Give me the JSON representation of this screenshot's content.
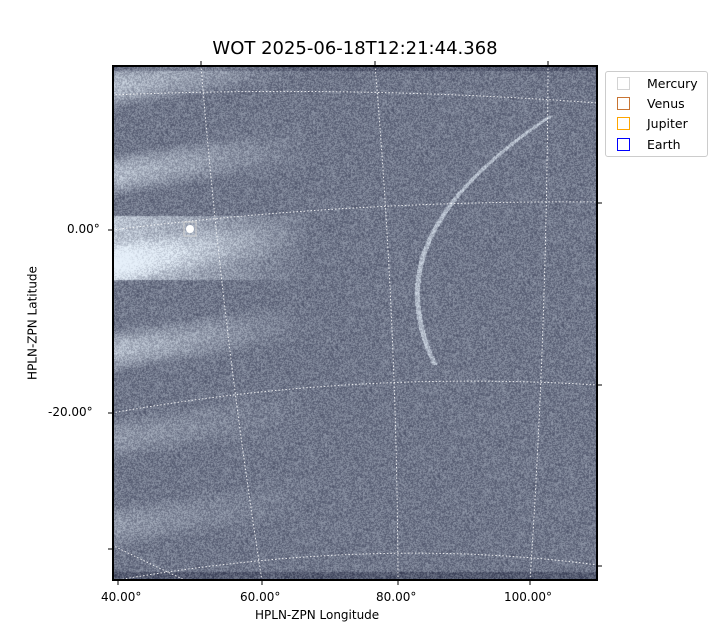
{
  "chart_data": {
    "type": "image",
    "title": "WOT 2025-06-18T12:21:44.368",
    "xlabel": "HPLN-ZPN Longitude",
    "ylabel": "HPLN-ZPN Latitude",
    "x_tick_labels": [
      "40.00°",
      "60.00°",
      "80.00°",
      "100.00°"
    ],
    "y_tick_labels": [
      "0.00°",
      "-20.00°"
    ],
    "colormap": "gray-blue",
    "grid": "on, white dotted",
    "legend_position": "outside top-right",
    "legend": [
      {
        "name": "Mercury",
        "color": "#d3d3d3"
      },
      {
        "name": "Venus",
        "color": "#c87533"
      },
      {
        "name": "Jupiter",
        "color": "#ffa500"
      },
      {
        "name": "Earth",
        "color": "#0000ff"
      }
    ]
  }
}
